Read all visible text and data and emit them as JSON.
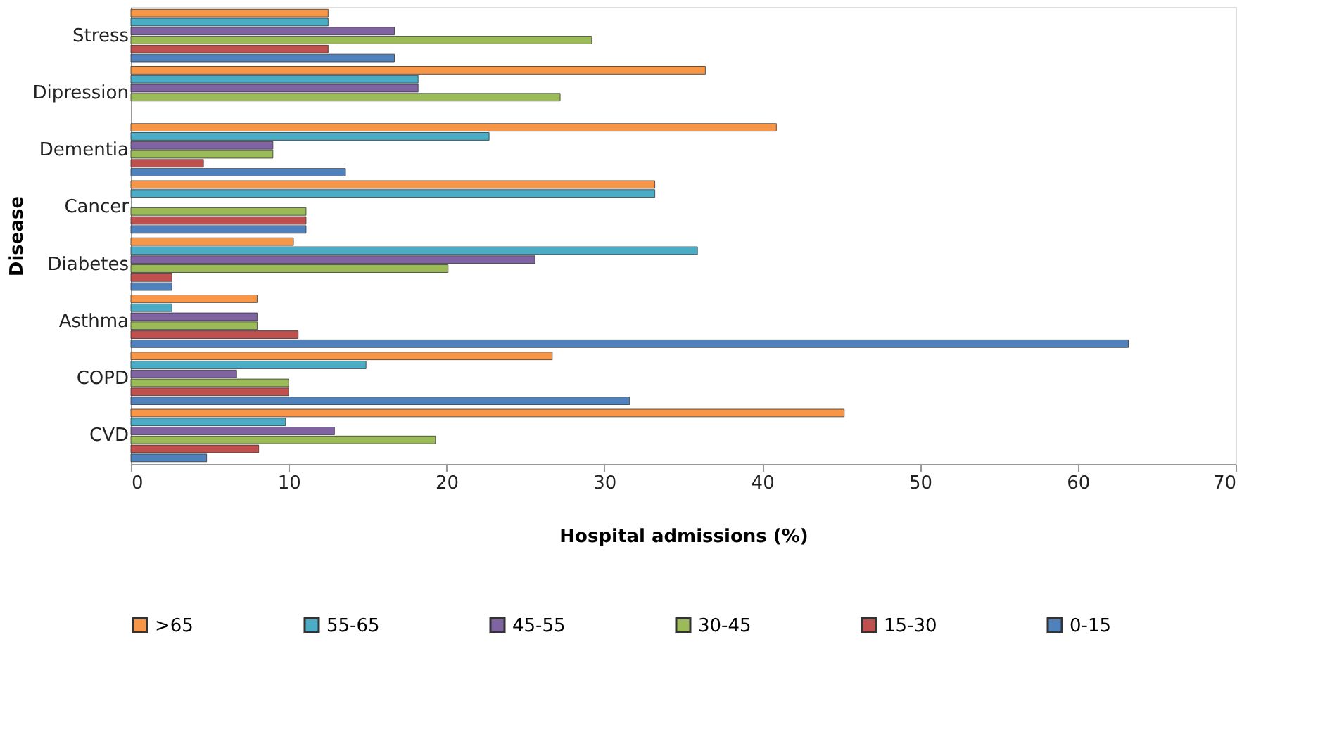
{
  "chart_data": {
    "type": "bar",
    "orientation": "horizontal",
    "xlabel": "Hospital admissions (%)",
    "ylabel": "Disease",
    "categories": [
      "Stress",
      "Dipression",
      "Dementia",
      "Cancer",
      "Diabetes",
      "Asthma",
      "COPD",
      "CVD"
    ],
    "series": [
      {
        "name": ">65",
        "color": "#f79646",
        "values": [
          12.5,
          36.4,
          40.9,
          33.2,
          10.3,
          8.0,
          26.7,
          45.2
        ]
      },
      {
        "name": "55-65",
        "color": "#4bacc6",
        "values": [
          12.5,
          18.2,
          22.7,
          33.2,
          35.9,
          2.6,
          14.9,
          9.8
        ]
      },
      {
        "name": "45-55",
        "color": "#8064a2",
        "values": [
          16.7,
          18.2,
          9.0,
          null,
          25.6,
          8.0,
          6.7,
          12.9
        ]
      },
      {
        "name": "30-45",
        "color": "#9bbb59",
        "values": [
          29.2,
          27.2,
          9.0,
          11.1,
          20.1,
          8.0,
          10.0,
          19.3
        ]
      },
      {
        "name": "15-30",
        "color": "#c0504d",
        "values": [
          12.5,
          null,
          4.6,
          11.1,
          2.6,
          10.6,
          10.0,
          8.1
        ]
      },
      {
        "name": "0-15",
        "color": "#4f81bd",
        "values": [
          16.7,
          null,
          13.6,
          11.1,
          2.6,
          63.2,
          31.6,
          4.8
        ]
      }
    ],
    "xlim": [
      0,
      70
    ],
    "xticks": [
      0,
      10,
      20,
      30,
      40,
      50,
      60,
      70
    ],
    "grid": false,
    "legend": "bottom"
  }
}
